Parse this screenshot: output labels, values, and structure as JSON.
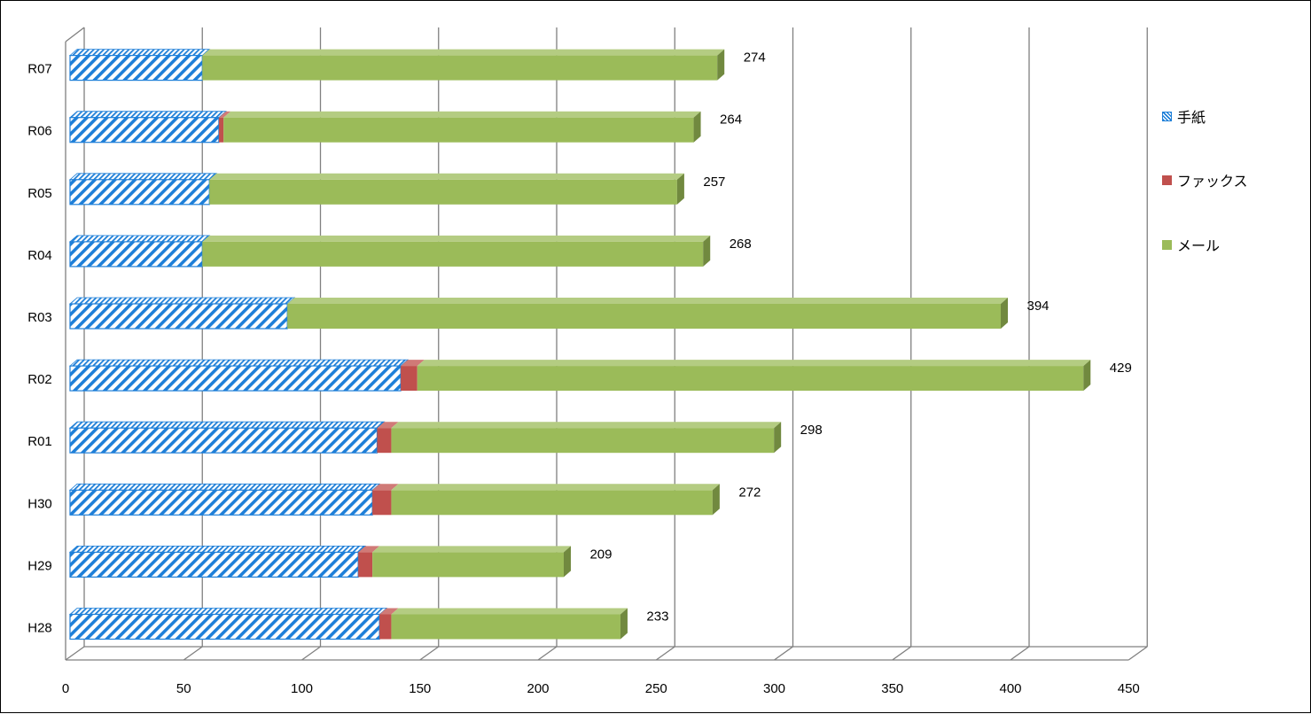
{
  "chart_data": {
    "type": "bar",
    "orientation": "horizontal",
    "stacked": true,
    "three_d": true,
    "categories": [
      "H28",
      "H29",
      "H30",
      "R01",
      "R02",
      "R03",
      "R04",
      "R05",
      "R06",
      "R07"
    ],
    "series": [
      {
        "name": "手紙",
        "values": [
          131,
          122,
          128,
          130,
          140,
          92,
          56,
          59,
          63,
          56
        ],
        "color": "#1E7FD8",
        "pattern": "diagonal-hatch"
      },
      {
        "name": "ファックス",
        "values": [
          5,
          6,
          8,
          6,
          7,
          0,
          0,
          0,
          2,
          0
        ],
        "color": "#C0504D"
      },
      {
        "name": "メール",
        "values": [
          97,
          81,
          136,
          162,
          282,
          302,
          212,
          198,
          199,
          218
        ],
        "color": "#9BBB59"
      }
    ],
    "totals": [
      233,
      209,
      272,
      298,
      429,
      394,
      268,
      257,
      264,
      274
    ],
    "xlim": [
      0,
      450
    ],
    "x_ticks": [
      0,
      50,
      100,
      150,
      200,
      250,
      300,
      350,
      400,
      450
    ],
    "grid": true,
    "legend_position": "right",
    "title": "",
    "xlabel": "",
    "ylabel": ""
  }
}
